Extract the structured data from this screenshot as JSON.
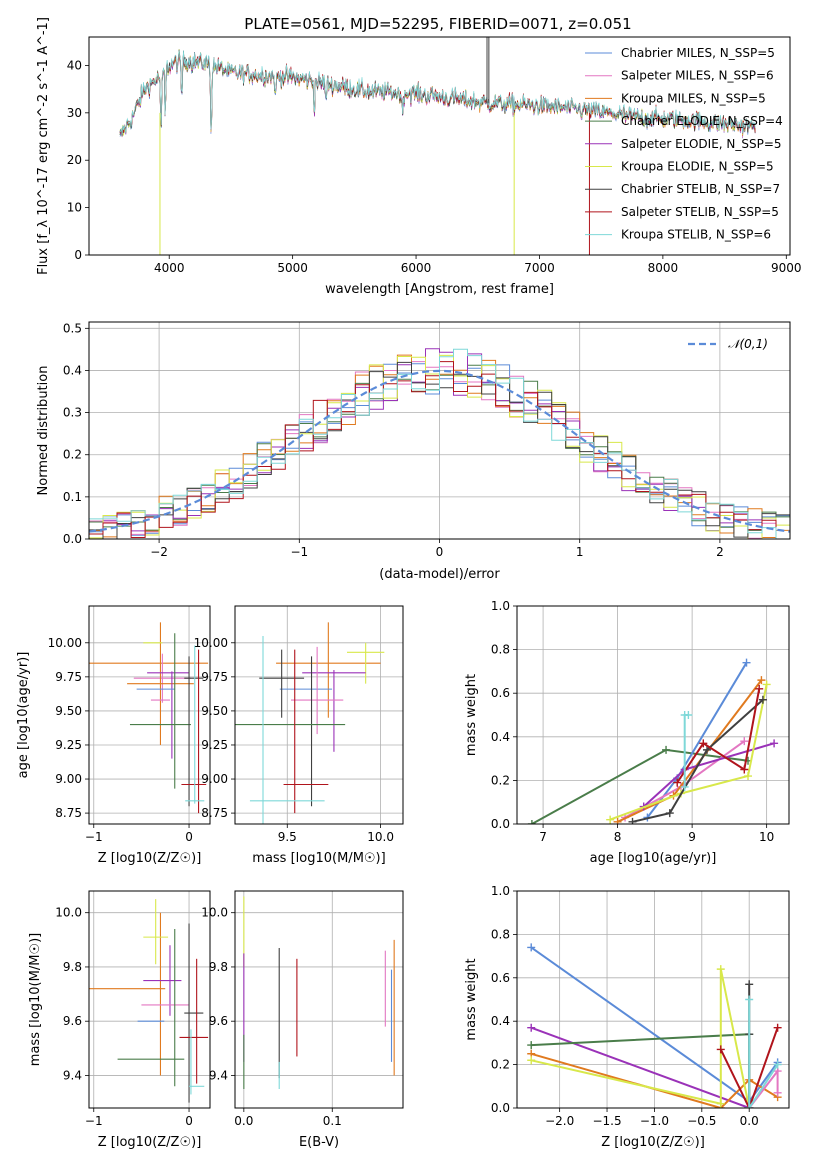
{
  "figure": {
    "title": "PLATE=0561, MJD=52295, FIBERID=0071, z=0.051"
  },
  "chart_data": [
    {
      "id": "spectrum",
      "type": "line",
      "xlabel": "wavelength [Angstrom, rest frame]",
      "ylabel": "Flux [f_λ 10^-17 erg cm^-2 s^-1 A^-1]",
      "xlim": [
        3350,
        9030
      ],
      "ylim": [
        0,
        46
      ],
      "xticks": [
        "4000",
        "5000",
        "6000",
        "7000",
        "8000",
        "9000"
      ],
      "yticks": [
        "0",
        "10",
        "20",
        "30",
        "40"
      ],
      "grid": false,
      "legend_position": "top-right",
      "data_range": [
        3600,
        8750
      ],
      "anchor_x": [
        3600,
        3700,
        3800,
        3900,
        4000,
        4100,
        4300,
        4500,
        4700,
        5000,
        5300,
        5600,
        6000,
        6300,
        6600,
        7000,
        7400,
        7800,
        8200,
        8750
      ],
      "anchor_y": [
        25,
        29,
        35,
        37,
        40,
        41,
        40.5,
        38.5,
        38,
        37.5,
        36,
        34.5,
        34,
        33,
        32,
        31.5,
        30.5,
        29,
        28.5,
        27
      ],
      "absorption_lines": [
        {
          "x": 3934,
          "depth": 14
        },
        {
          "x": 3968,
          "depth": 10
        },
        {
          "x": 4101,
          "depth": 8
        },
        {
          "x": 4340,
          "depth": 16
        },
        {
          "x": 4861,
          "depth": 5
        },
        {
          "x": 5175,
          "depth": 6
        },
        {
          "x": 5270,
          "depth": 4
        },
        {
          "x": 5890,
          "depth": 5
        }
      ],
      "series": [
        {
          "name": "Chabrier MILES, N_SSP=5",
          "color": "#5b8bd8"
        },
        {
          "name": "Salpeter MILES, N_SSP=6",
          "color": "#e377c2"
        },
        {
          "name": "Kroupa MILES, N_SSP=5",
          "color": "#e07a1f"
        },
        {
          "name": "Chabrier ELODIE, N_SSP=4",
          "color": "#4a7d4a"
        },
        {
          "name": "Salpeter ELODIE, N_SSP=5",
          "color": "#9a32b8"
        },
        {
          "name": "Kroupa ELODIE, N_SSP=5",
          "color": "#d8e84a"
        },
        {
          "name": "Chabrier STELIB, N_SSP=7",
          "color": "#404040"
        },
        {
          "name": "Salpeter STELIB, N_SSP=5",
          "color": "#b0141c"
        },
        {
          "name": "Kroupa STELIB, N_SSP=6",
          "color": "#7ed8d8"
        }
      ]
    },
    {
      "id": "residuals",
      "type": "area",
      "xlabel": "(data-model)/error",
      "ylabel": "Normed distribution",
      "xlim": [
        -2.5,
        2.5
      ],
      "ylim": [
        0,
        0.515
      ],
      "xticks": [
        "−2",
        "−1",
        "0",
        "1",
        "2"
      ],
      "yticks": [
        "0.0",
        "0.1",
        "0.2",
        "0.3",
        "0.4",
        "0.5"
      ],
      "grid": true,
      "legend_position": "top-right",
      "reference_curve": {
        "label": "𝒩(0,1)",
        "color": "#5b8bd8",
        "style": "dashed",
        "mean": 0,
        "sigma": 1
      },
      "bin_width": 0.1
    },
    {
      "id": "age_vs_Z",
      "type": "scatter",
      "xlabel": "Z [log10(Z/Z☉)]",
      "ylabel": "age  [log10(age/yr)]",
      "xlim": [
        -1.05,
        0.22
      ],
      "ylim": [
        8.67,
        10.27
      ],
      "xticks": [
        "−1",
        "0"
      ],
      "yticks": [
        "8.75",
        "9.00",
        "9.25",
        "9.50",
        "9.75",
        "10.00"
      ],
      "grid": true,
      "points": [
        {
          "x": -0.9,
          "xerr": 1.1,
          "y": 9.85,
          "yerr": 0.0,
          "color": "#e07a1f"
        },
        {
          "x": -0.28,
          "xerr": 0.3,
          "y": 9.74,
          "yerr": 0.18,
          "color": "#e377c2"
        },
        {
          "x": -0.3,
          "xerr": 0.35,
          "y": 9.7,
          "yerr": 0.45,
          "color": "#e07a1f"
        },
        {
          "x": -0.22,
          "xerr": 0.22,
          "y": 9.78,
          "yerr": 0.0,
          "color": "#9a32b8"
        },
        {
          "x": -0.18,
          "xerr": 0.0,
          "y": 9.47,
          "yerr": 0.32,
          "color": "#9a32b8"
        },
        {
          "x": -0.35,
          "xerr": 0.2,
          "y": 9.66,
          "yerr": 0.0,
          "color": "#5b8bd8"
        },
        {
          "x": -0.38,
          "xerr": 0.1,
          "y": 10.0,
          "yerr": 0.0,
          "color": "#d8e84a"
        },
        {
          "x": -0.3,
          "xerr": 0.1,
          "y": 9.58,
          "yerr": 0.0,
          "color": "#e377c2"
        },
        {
          "x": -0.3,
          "xerr": 0.32,
          "y": 9.4,
          "yerr": 0.0,
          "color": "#4a7d4a"
        },
        {
          "x": -0.15,
          "xerr": 0.0,
          "y": 9.5,
          "yerr": 0.57,
          "color": "#4a7d4a"
        },
        {
          "x": 0.0,
          "xerr": 0.0,
          "y": 9.35,
          "yerr": 0.55,
          "color": "#404040"
        },
        {
          "x": 0.05,
          "xerr": 0.1,
          "y": 9.74,
          "yerr": 0.0,
          "color": "#404040"
        },
        {
          "x": 0.05,
          "xerr": 0.13,
          "y": 8.96,
          "yerr": 0.0,
          "color": "#b0141c"
        },
        {
          "x": 0.1,
          "xerr": 0.0,
          "y": 9.35,
          "yerr": 0.6,
          "color": "#b0141c"
        },
        {
          "x": 0.06,
          "xerr": 0.1,
          "y": 8.84,
          "yerr": 0.0,
          "color": "#7ed8d8"
        },
        {
          "x": 0.06,
          "xerr": 0.0,
          "y": 9.4,
          "yerr": 0.58,
          "color": "#7ed8d8"
        }
      ]
    },
    {
      "id": "age_vs_mass",
      "type": "scatter",
      "xlabel": "mass [log10(M/M☉)]",
      "ylabel": "",
      "xlim": [
        9.22,
        10.12
      ],
      "ylim": [
        8.67,
        10.27
      ],
      "xticks": [
        "9.5",
        "10.0"
      ],
      "yticks": [
        "8.75",
        "9.00",
        "9.25",
        "9.50",
        "9.75",
        "10.00"
      ],
      "grid": true,
      "points": [
        {
          "x": 9.72,
          "xerr": 0.28,
          "y": 9.85,
          "yerr": 0.0,
          "color": "#e07a1f"
        },
        {
          "x": 9.72,
          "xerr": 0.0,
          "y": 9.8,
          "yerr": 0.35,
          "color": "#e07a1f"
        },
        {
          "x": 9.92,
          "xerr": 0.1,
          "y": 9.93,
          "yerr": 0.0,
          "color": "#d8e84a"
        },
        {
          "x": 9.92,
          "xerr": 0.0,
          "y": 9.85,
          "yerr": 0.15,
          "color": "#d8e84a"
        },
        {
          "x": 9.75,
          "xerr": 0.17,
          "y": 9.78,
          "yerr": 0.0,
          "color": "#9a32b8"
        },
        {
          "x": 9.75,
          "xerr": 0.0,
          "y": 9.5,
          "yerr": 0.3,
          "color": "#9a32b8"
        },
        {
          "x": 9.6,
          "xerr": 0.14,
          "y": 9.66,
          "yerr": 0.0,
          "color": "#5b8bd8"
        },
        {
          "x": 9.66,
          "xerr": 0.14,
          "y": 9.58,
          "yerr": 0.0,
          "color": "#e377c2"
        },
        {
          "x": 9.66,
          "xerr": 0.0,
          "y": 9.65,
          "yerr": 0.32,
          "color": "#e377c2"
        },
        {
          "x": 9.47,
          "xerr": 0.12,
          "y": 9.74,
          "yerr": 0.0,
          "color": "#404040"
        },
        {
          "x": 9.47,
          "xerr": 0.0,
          "y": 9.7,
          "yerr": 0.25,
          "color": "#404040"
        },
        {
          "x": 9.63,
          "xerr": 0.0,
          "y": 9.35,
          "yerr": 0.55,
          "color": "#404040"
        },
        {
          "x": 9.47,
          "xerr": 0.34,
          "y": 9.4,
          "yerr": 0.0,
          "color": "#4a7d4a"
        },
        {
          "x": 9.6,
          "xerr": 0.12,
          "y": 8.96,
          "yerr": 0.0,
          "color": "#b0141c"
        },
        {
          "x": 9.54,
          "xerr": 0.0,
          "y": 9.35,
          "yerr": 0.6,
          "color": "#b0141c"
        },
        {
          "x": 9.5,
          "xerr": 0.2,
          "y": 8.84,
          "yerr": 0.0,
          "color": "#7ed8d8"
        },
        {
          "x": 9.37,
          "xerr": 0.0,
          "y": 9.35,
          "yerr": 0.7,
          "color": "#7ed8d8"
        }
      ]
    },
    {
      "id": "weight_vs_age",
      "type": "line",
      "xlabel": "age  [log10(age/yr)]",
      "ylabel": "mass weight",
      "xlim": [
        6.65,
        10.3
      ],
      "ylim": [
        0,
        1
      ],
      "xticks": [
        "7",
        "8",
        "9",
        "10"
      ],
      "yticks": [
        "0.0",
        "0.2",
        "0.4",
        "0.6",
        "0.8",
        "1.0"
      ],
      "grid": true,
      "series": [
        {
          "color": "#4a7d4a",
          "x": [
            6.85,
            8.65,
            9.75
          ],
          "y": [
            0.0,
            0.34,
            0.29
          ]
        },
        {
          "color": "#5b8bd8",
          "x": [
            8.4,
            8.8,
            9.73
          ],
          "y": [
            0.03,
            0.21,
            0.74
          ]
        },
        {
          "color": "#e377c2",
          "x": [
            8.1,
            8.85,
            9.7
          ],
          "y": [
            0.03,
            0.17,
            0.38
          ]
        },
        {
          "color": "#e07a1f",
          "x": [
            8.0,
            8.75,
            9.93
          ],
          "y": [
            0.01,
            0.13,
            0.66
          ]
        },
        {
          "color": "#9a32b8",
          "x": [
            8.35,
            8.9,
            10.1
          ],
          "y": [
            0.08,
            0.25,
            0.37
          ]
        },
        {
          "color": "#d8e84a",
          "x": [
            7.9,
            8.85,
            9.75,
            10.0
          ],
          "y": [
            0.02,
            0.14,
            0.22,
            0.64
          ]
        },
        {
          "color": "#404040",
          "x": [
            8.2,
            8.7,
            9.2,
            9.95
          ],
          "y": [
            0.01,
            0.05,
            0.34,
            0.57
          ]
        },
        {
          "color": "#b0141c",
          "x": [
            8.8,
            9.15,
            9.7,
            9.9
          ],
          "y": [
            0.19,
            0.37,
            0.25,
            0.62
          ]
        },
        {
          "color": "#7ed8d8",
          "x": [
            8.9,
            8.9,
            8.95
          ],
          "y": [
            0.17,
            0.5,
            0.5
          ]
        }
      ]
    },
    {
      "id": "mass_vs_Z",
      "type": "scatter",
      "xlabel": "Z [log10(Z/Z☉)]",
      "ylabel": "mass [log10(M/M☉)]",
      "xlim": [
        -1.05,
        0.22
      ],
      "ylim": [
        9.28,
        10.08
      ],
      "xticks": [
        "−1",
        "0"
      ],
      "yticks": [
        "9.4",
        "9.6",
        "9.8",
        "10.0"
      ],
      "grid": true,
      "points": [
        {
          "x": -0.97,
          "xerr": 0.72,
          "y": 9.72,
          "yerr": 0.0,
          "color": "#e07a1f"
        },
        {
          "x": -0.3,
          "xerr": 0.0,
          "y": 9.7,
          "yerr": 0.3,
          "color": "#e07a1f"
        },
        {
          "x": -0.35,
          "xerr": 0.13,
          "y": 9.91,
          "yerr": 0.0,
          "color": "#d8e84a"
        },
        {
          "x": -0.35,
          "xerr": 0.0,
          "y": 9.93,
          "yerr": 0.12,
          "color": "#d8e84a"
        },
        {
          "x": -0.28,
          "xerr": 0.2,
          "y": 9.75,
          "yerr": 0.0,
          "color": "#9a32b8"
        },
        {
          "x": -0.2,
          "xerr": 0.0,
          "y": 9.75,
          "yerr": 0.13,
          "color": "#9a32b8"
        },
        {
          "x": -0.25,
          "xerr": 0.25,
          "y": 9.66,
          "yerr": 0.0,
          "color": "#e377c2"
        },
        {
          "x": -0.4,
          "xerr": 0.14,
          "y": 9.6,
          "yerr": 0.0,
          "color": "#5b8bd8"
        },
        {
          "x": -0.4,
          "xerr": 0.35,
          "y": 9.46,
          "yerr": 0.0,
          "color": "#4a7d4a"
        },
        {
          "x": -0.15,
          "xerr": 0.0,
          "y": 9.65,
          "yerr": 0.29,
          "color": "#4a7d4a"
        },
        {
          "x": 0.05,
          "xerr": 0.1,
          "y": 9.63,
          "yerr": 0.0,
          "color": "#404040"
        },
        {
          "x": 0.0,
          "xerr": 0.0,
          "y": 9.63,
          "yerr": 0.33,
          "color": "#404040"
        },
        {
          "x": 0.05,
          "xerr": 0.15,
          "y": 9.54,
          "yerr": 0.0,
          "color": "#b0141c"
        },
        {
          "x": 0.08,
          "xerr": 0.0,
          "y": 9.6,
          "yerr": 0.23,
          "color": "#b0141c"
        },
        {
          "x": 0.08,
          "xerr": 0.08,
          "y": 9.36,
          "yerr": 0.0,
          "color": "#7ed8d8"
        },
        {
          "x": 0.02,
          "xerr": 0.0,
          "y": 9.45,
          "yerr": 0.12,
          "color": "#7ed8d8"
        }
      ]
    },
    {
      "id": "mass_vs_ebv",
      "type": "scatter",
      "xlabel": "E(B-V)",
      "ylabel": "",
      "xlim": [
        -0.01,
        0.18
      ],
      "ylim": [
        9.28,
        10.08
      ],
      "xticks": [
        "0.0",
        "0.1"
      ],
      "yticks": [
        "9.4",
        "9.6",
        "9.8",
        "10.0"
      ],
      "grid": true,
      "points": [
        {
          "x": 0.0,
          "xerr": 0.0,
          "y": 9.93,
          "yerr": 0.13,
          "color": "#d8e84a"
        },
        {
          "x": 0.0,
          "xerr": 0.0,
          "y": 9.65,
          "yerr": 0.2,
          "color": "#9a32b8"
        },
        {
          "x": 0.0,
          "xerr": 0.0,
          "y": 9.45,
          "yerr": 0.1,
          "color": "#4a7d4a"
        },
        {
          "x": 0.04,
          "xerr": 0.0,
          "y": 9.63,
          "yerr": 0.24,
          "color": "#404040"
        },
        {
          "x": 0.04,
          "xerr": 0.0,
          "y": 9.4,
          "yerr": 0.05,
          "color": "#7ed8d8"
        },
        {
          "x": 0.06,
          "xerr": 0.0,
          "y": 9.65,
          "yerr": 0.18,
          "color": "#b0141c"
        },
        {
          "x": 0.16,
          "xerr": 0.0,
          "y": 9.72,
          "yerr": 0.14,
          "color": "#e377c2"
        },
        {
          "x": 0.17,
          "xerr": 0.0,
          "y": 9.65,
          "yerr": 0.25,
          "color": "#e07a1f"
        },
        {
          "x": 0.167,
          "xerr": 0.0,
          "y": 9.62,
          "yerr": 0.17,
          "color": "#5b8bd8"
        }
      ]
    },
    {
      "id": "weight_vs_Z",
      "type": "line",
      "xlabel": "Z [log10(Z/Z☉)]",
      "ylabel": "mass weight",
      "xlim": [
        -2.45,
        0.42
      ],
      "ylim": [
        0,
        1
      ],
      "xticks": [
        "−2.0",
        "−1.5",
        "−1.0",
        "−0.5",
        "0.0"
      ],
      "yticks": [
        "0.0",
        "0.2",
        "0.4",
        "0.6",
        "0.8",
        "1.0"
      ],
      "grid": true,
      "series": [
        {
          "color": "#5b8bd8",
          "x": [
            -2.3,
            0.0,
            0.3
          ],
          "y": [
            0.74,
            0.03,
            0.21
          ]
        },
        {
          "color": "#9a32b8",
          "x": [
            -2.3,
            0.0
          ],
          "y": [
            0.37,
            0.0
          ]
        },
        {
          "color": "#4a7d4a",
          "x": [
            -2.3,
            0.0,
            -0.0
          ],
          "y": [
            0.29,
            0.34,
            0.0
          ]
        },
        {
          "color": "#e07a1f",
          "x": [
            -2.3,
            -0.3,
            0.0,
            0.3
          ],
          "y": [
            0.25,
            0.0,
            0.13,
            0.05
          ]
        },
        {
          "color": "#d8e84a",
          "x": [
            -2.3,
            -0.3,
            -0.3,
            0.0
          ],
          "y": [
            0.22,
            0.02,
            0.64,
            0.0
          ]
        },
        {
          "color": "#404040",
          "x": [
            0.0,
            0.0,
            0.0
          ],
          "y": [
            0.57,
            0.0,
            0.34
          ]
        },
        {
          "color": "#b0141c",
          "x": [
            -0.3,
            0.0,
            0.3
          ],
          "y": [
            0.27,
            0.0,
            0.37
          ]
        },
        {
          "color": "#e377c2",
          "x": [
            0.0,
            0.3,
            0.3
          ],
          "y": [
            0.0,
            0.17,
            0.07
          ]
        },
        {
          "color": "#7ed8d8",
          "x": [
            0.0,
            0.0,
            0.3
          ],
          "y": [
            0.5,
            0.0,
            0.2
          ]
        }
      ]
    }
  ]
}
